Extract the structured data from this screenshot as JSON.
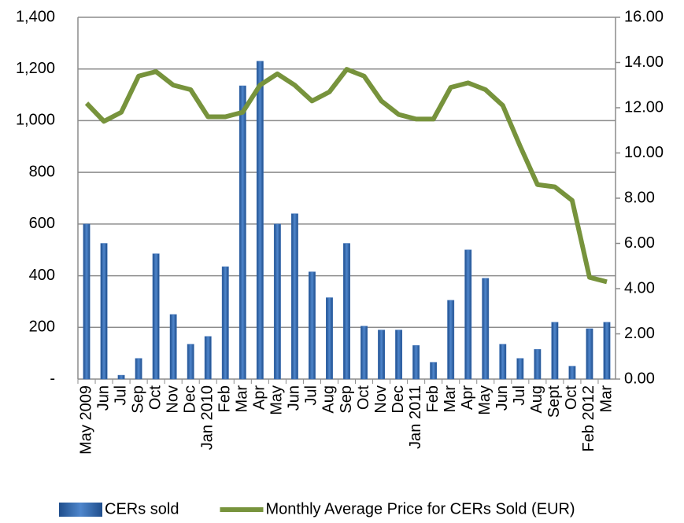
{
  "chart_data": {
    "type": "bar-line",
    "categories": [
      "May 2009",
      "Jun",
      "Jul",
      "Sep",
      "Oct",
      "Nov",
      "Dec",
      "Jan 2010",
      "Feb",
      "Mar",
      "Apr",
      "May",
      "Jun",
      "Jul",
      "Aug",
      "Sep",
      "Oct",
      "Nov",
      "Dec",
      "Jan 2011",
      "Feb",
      "Mar",
      "Apr",
      "May",
      "Jun",
      "Jul",
      "Aug",
      "Sept",
      "Oct",
      "Feb 2012",
      "Mar"
    ],
    "series": [
      {
        "name": "CERs sold",
        "type": "bar",
        "color": "#3f72b8",
        "values": [
          600,
          525,
          15,
          80,
          485,
          250,
          135,
          165,
          435,
          1135,
          1230,
          600,
          640,
          415,
          315,
          525,
          205,
          190,
          190,
          130,
          65,
          305,
          500,
          390,
          135,
          80,
          115,
          220,
          50,
          195,
          220
        ]
      },
      {
        "name": "Monthly Average Price for CERs Sold (EUR)",
        "type": "line",
        "axis": "y2",
        "color": "#77933c",
        "values": [
          12.2,
          11.4,
          11.8,
          13.4,
          13.6,
          13.0,
          12.8,
          11.6,
          11.6,
          11.8,
          13.0,
          13.5,
          13.0,
          12.3,
          12.7,
          13.7,
          13.4,
          12.3,
          11.7,
          11.5,
          11.5,
          12.9,
          13.1,
          12.8,
          12.1,
          10.3,
          8.6,
          8.5,
          7.9,
          4.5,
          4.3
        ]
      }
    ],
    "ylim": [
      0,
      1400
    ],
    "yticks": [
      {
        "value": 0,
        "label": "-"
      },
      200,
      400,
      600,
      800,
      {
        "value": 1000,
        "label": "1,000"
      },
      {
        "value": 1200,
        "label": "1,200"
      },
      {
        "value": 1400,
        "label": "1,400"
      }
    ],
    "y2lim": [
      0,
      16
    ],
    "y2ticks": [
      {
        "value": 0,
        "label": "0.00"
      },
      {
        "value": 2,
        "label": "2.00"
      },
      {
        "value": 4,
        "label": "4.00"
      },
      {
        "value": 6,
        "label": "6.00"
      },
      {
        "value": 8,
        "label": "8.00"
      },
      {
        "value": 10,
        "label": "10.00"
      },
      {
        "value": 12,
        "label": "12.00"
      },
      {
        "value": 14,
        "label": "14.00"
      },
      {
        "value": 16,
        "label": "16.00"
      }
    ],
    "grid": true,
    "legend": "bottom"
  }
}
